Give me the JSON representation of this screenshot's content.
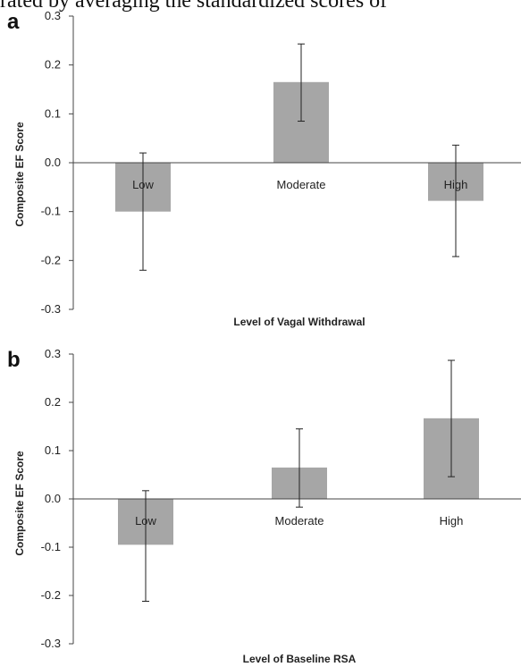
{
  "caption_fragment": "rated by averaging the standardized scores of",
  "chart_data": [
    {
      "panel": "a",
      "type": "bar",
      "categories": [
        "Low",
        "Moderate",
        "High"
      ],
      "values": [
        -0.1,
        0.165,
        -0.078
      ],
      "error_upper": [
        0.02,
        0.243,
        0.036
      ],
      "error_lower": [
        -0.22,
        0.085,
        -0.192
      ],
      "xlabel": "Level of Vagal Withdrawal",
      "ylabel": "Composite EF Score",
      "ylim": [
        -0.3,
        0.3
      ],
      "yticks": [
        "0.3",
        "0.2",
        "0.1",
        "0.0",
        "-0.1",
        "-0.2",
        "-0.3"
      ],
      "bar_color": "#a6a6a6",
      "grid": false
    },
    {
      "panel": "b",
      "type": "bar",
      "categories": [
        "Low",
        "Moderate",
        "High"
      ],
      "values": [
        -0.095,
        0.065,
        0.167
      ],
      "error_upper": [
        0.017,
        0.145,
        0.287
      ],
      "error_lower": [
        -0.212,
        -0.017,
        0.046
      ],
      "xlabel": "Level of Baseline RSA",
      "ylabel": "Composite EF Score",
      "ylim": [
        -0.3,
        0.3
      ],
      "yticks": [
        "0.3",
        "0.2",
        "0.1",
        "0.0",
        "-0.1",
        "-0.2",
        "-0.3"
      ],
      "bar_color": "#a6a6a6",
      "grid": false
    }
  ]
}
